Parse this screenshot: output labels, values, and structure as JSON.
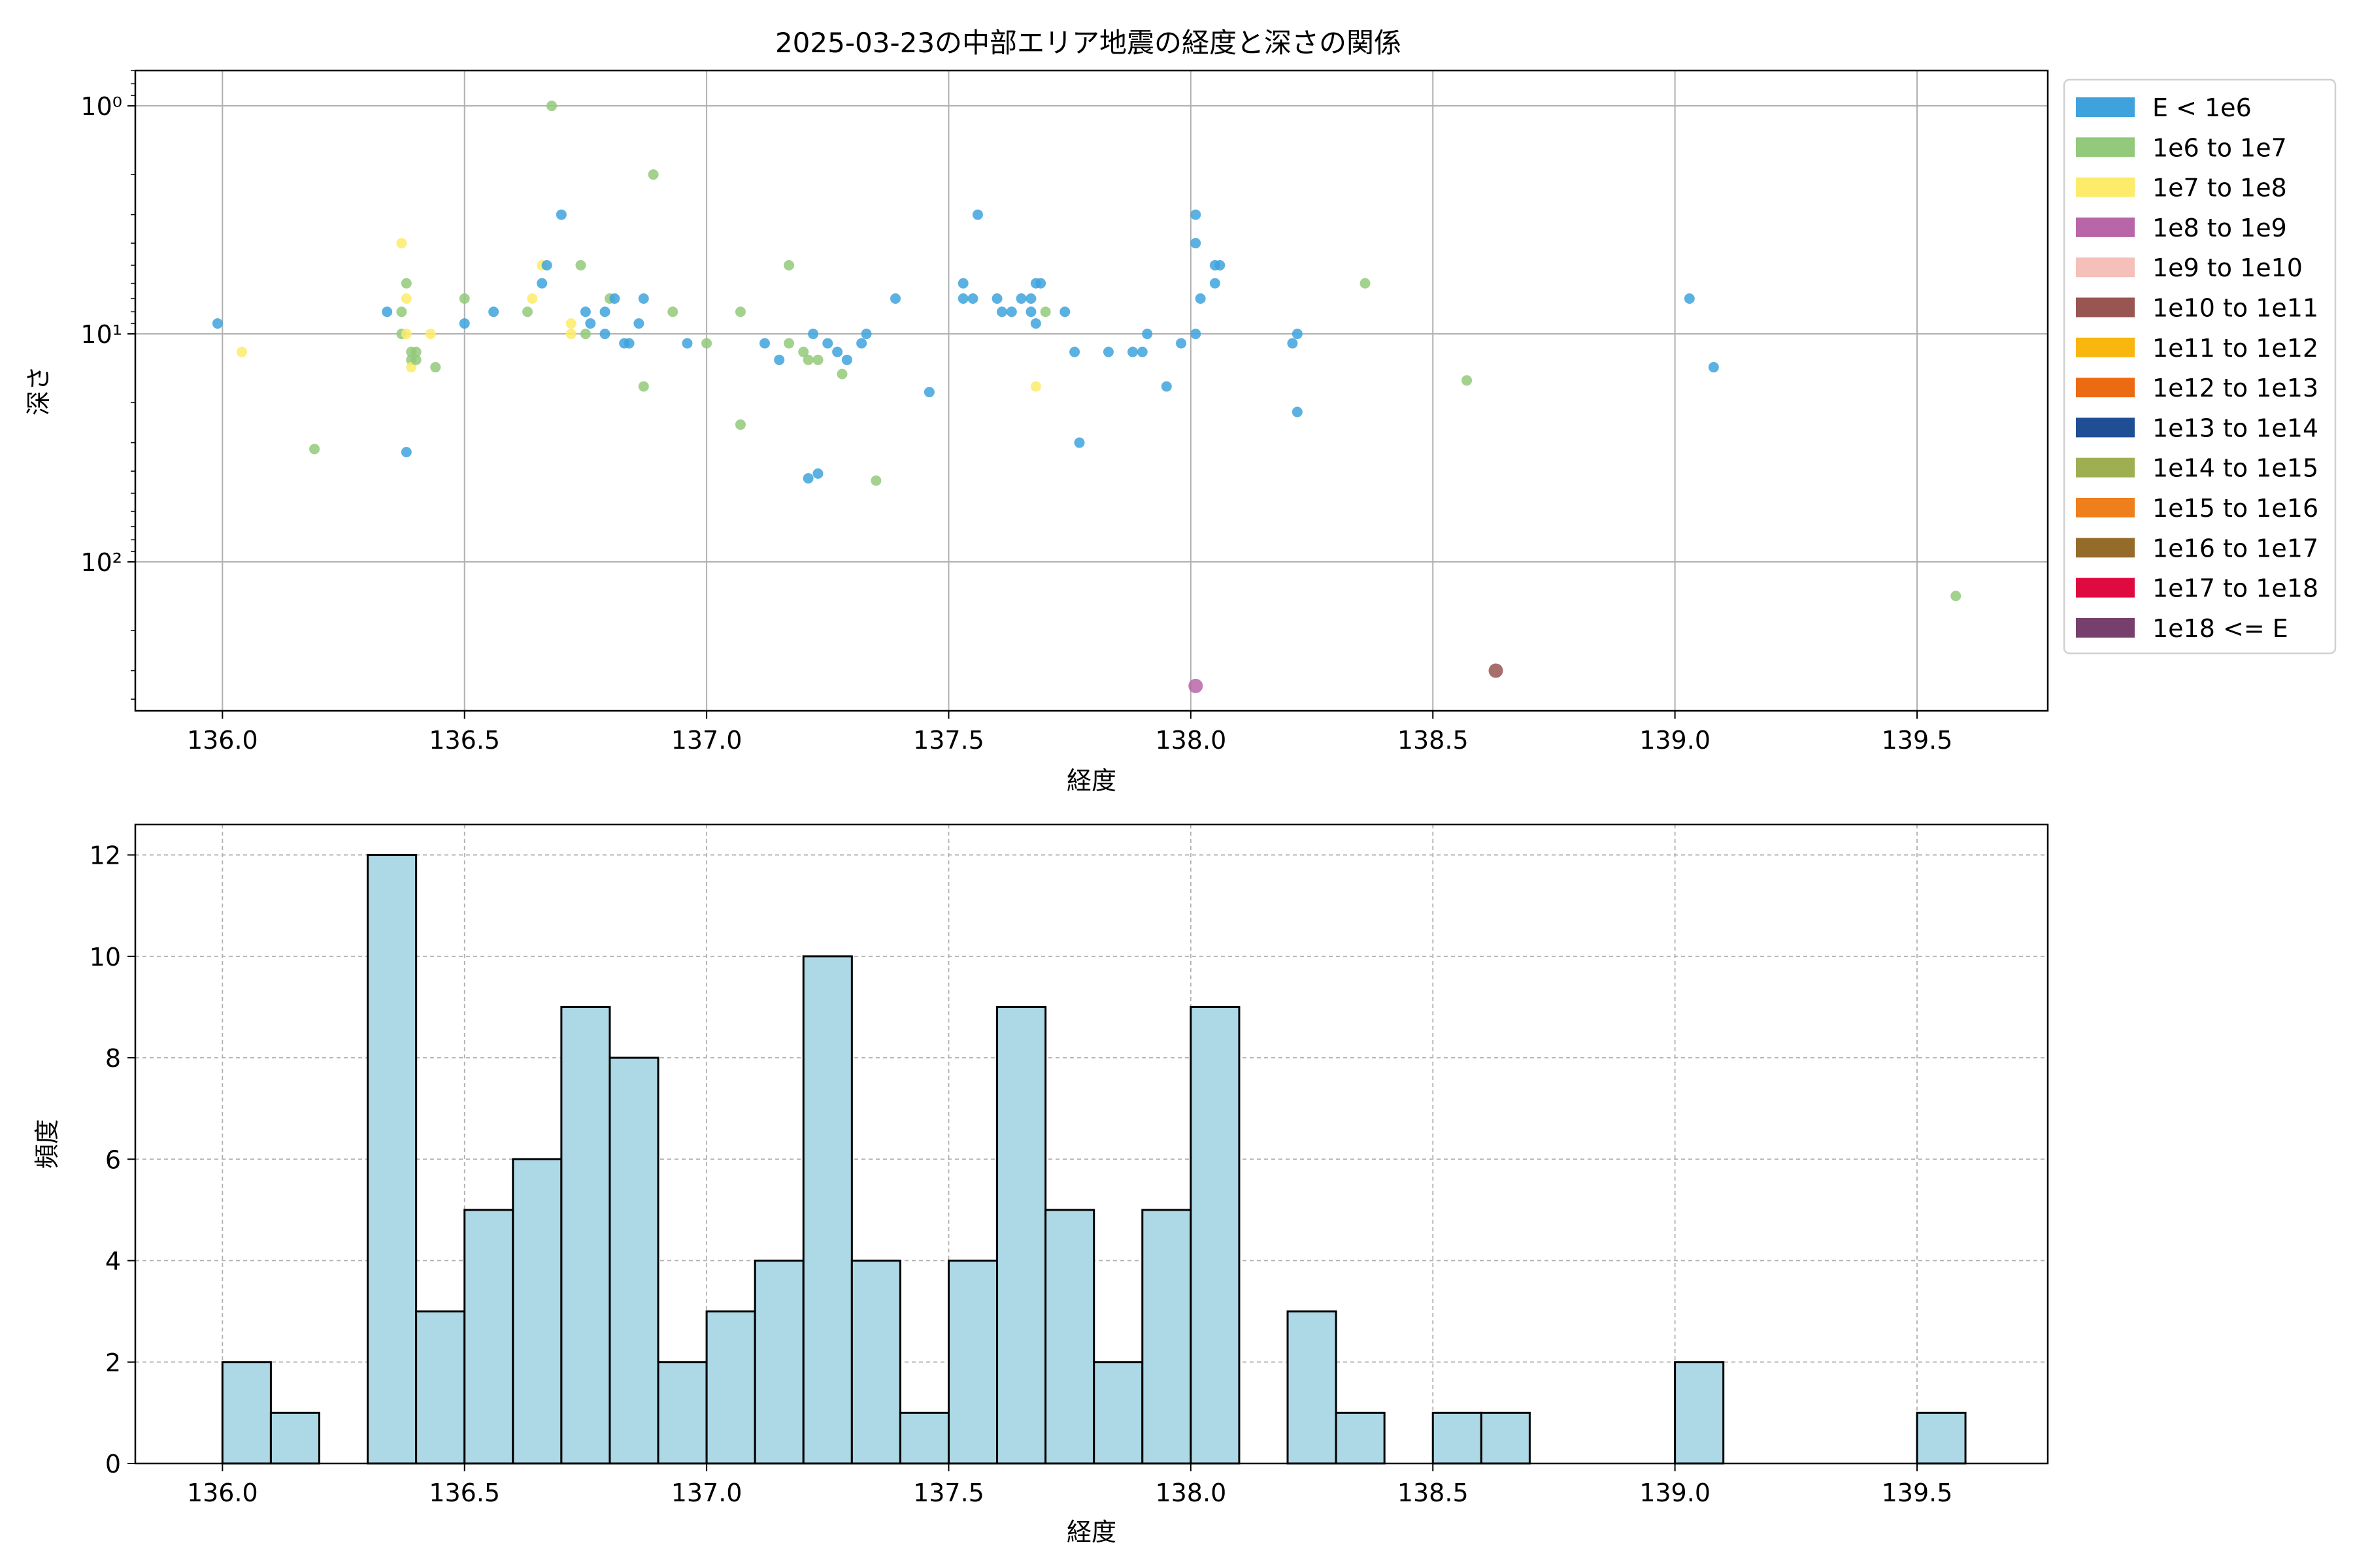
{
  "figure_title": "2025-03-23の中部エリア地震の経度と深さの関係",
  "chart_data": [
    {
      "type": "scatter",
      "title": "2025-03-23の中部エリア地震の経度と深さの関係",
      "xlabel": "経度",
      "ylabel": "深さ",
      "xlim": [
        135.82,
        139.77
      ],
      "xticks": [
        136.0,
        136.5,
        137.0,
        137.5,
        138.0,
        138.5,
        139.0,
        139.5
      ],
      "xtick_labels": [
        "136.0",
        "136.5",
        "137.0",
        "137.5",
        "138.0",
        "138.5",
        "139.0",
        "139.5"
      ],
      "yscale": "log",
      "yaxis_inverted": true,
      "ylim": [
        0.7,
        450
      ],
      "yticks": [
        1,
        10,
        100
      ],
      "ytick_labels": [
        "10⁰",
        "10¹",
        "10²"
      ],
      "grid": true,
      "legend_position": "outside-right",
      "legend": [
        {
          "label": "E < 1e6",
          "color": "#3ea3dc"
        },
        {
          "label": "1e6 to 1e7",
          "color": "#93c97a"
        },
        {
          "label": "1e7 to 1e8",
          "color": "#fdeb6a"
        },
        {
          "label": "1e8 to 1e9",
          "color": "#b866a7"
        },
        {
          "label": "1e9 to 1e10",
          "color": "#f4c0b9"
        },
        {
          "label": "1e10 to 1e11",
          "color": "#985551"
        },
        {
          "label": "1e11 to 1e12",
          "color": "#f8b60e"
        },
        {
          "label": "1e12 to 1e13",
          "color": "#ec6a12"
        },
        {
          "label": "1e13 to 1e14",
          "color": "#1f4e95"
        },
        {
          "label": "1e14 to 1e15",
          "color": "#9eaf52"
        },
        {
          "label": "1e15 to 1e16",
          "color": "#ee7f1c"
        },
        {
          "label": "1e16 to 1e17",
          "color": "#956b2a"
        },
        {
          "label": "1e17 to 1e18",
          "color": "#df0a3f"
        },
        {
          "label": "1e18 <= E",
          "color": "#763f6c"
        }
      ],
      "points": [
        {
          "x": 135.99,
          "y": 9,
          "c": 0
        },
        {
          "x": 136.04,
          "y": 12,
          "c": 2
        },
        {
          "x": 136.19,
          "y": 32,
          "c": 1
        },
        {
          "x": 136.34,
          "y": 8,
          "c": 0
        },
        {
          "x": 136.37,
          "y": 8,
          "c": 1
        },
        {
          "x": 136.37,
          "y": 10,
          "c": 1
        },
        {
          "x": 136.37,
          "y": 4,
          "c": 2
        },
        {
          "x": 136.38,
          "y": 7,
          "c": 2
        },
        {
          "x": 136.38,
          "y": 10,
          "c": 2
        },
        {
          "x": 136.38,
          "y": 33,
          "c": 0
        },
        {
          "x": 136.38,
          "y": 6,
          "c": 1
        },
        {
          "x": 136.39,
          "y": 13,
          "c": 1
        },
        {
          "x": 136.39,
          "y": 14,
          "c": 2
        },
        {
          "x": 136.39,
          "y": 12,
          "c": 1
        },
        {
          "x": 136.4,
          "y": 13,
          "c": 1
        },
        {
          "x": 136.4,
          "y": 12,
          "c": 1
        },
        {
          "x": 136.43,
          "y": 10,
          "c": 2
        },
        {
          "x": 136.44,
          "y": 14,
          "c": 1
        },
        {
          "x": 136.5,
          "y": 9,
          "c": 0
        },
        {
          "x": 136.5,
          "y": 7,
          "c": 1
        },
        {
          "x": 136.56,
          "y": 8,
          "c": 0
        },
        {
          "x": 136.63,
          "y": 8,
          "c": 1
        },
        {
          "x": 136.64,
          "y": 7,
          "c": 2
        },
        {
          "x": 136.66,
          "y": 5,
          "c": 2
        },
        {
          "x": 136.66,
          "y": 6,
          "c": 0
        },
        {
          "x": 136.67,
          "y": 5,
          "c": 0
        },
        {
          "x": 136.68,
          "y": 1,
          "c": 1
        },
        {
          "x": 136.7,
          "y": 3,
          "c": 0
        },
        {
          "x": 136.72,
          "y": 9,
          "c": 2
        },
        {
          "x": 136.72,
          "y": 10,
          "c": 2
        },
        {
          "x": 136.74,
          "y": 5,
          "c": 1
        },
        {
          "x": 136.75,
          "y": 8,
          "c": 0
        },
        {
          "x": 136.75,
          "y": 10,
          "c": 1
        },
        {
          "x": 136.76,
          "y": 9,
          "c": 0
        },
        {
          "x": 136.79,
          "y": 8,
          "c": 0
        },
        {
          "x": 136.79,
          "y": 10,
          "c": 0
        },
        {
          "x": 136.8,
          "y": 7,
          "c": 1
        },
        {
          "x": 136.81,
          "y": 7,
          "c": 0
        },
        {
          "x": 136.83,
          "y": 11,
          "c": 0
        },
        {
          "x": 136.84,
          "y": 11,
          "c": 0
        },
        {
          "x": 136.86,
          "y": 9,
          "c": 0
        },
        {
          "x": 136.87,
          "y": 7,
          "c": 0
        },
        {
          "x": 136.87,
          "y": 17,
          "c": 1
        },
        {
          "x": 136.89,
          "y": 2,
          "c": 1
        },
        {
          "x": 136.93,
          "y": 8,
          "c": 1
        },
        {
          "x": 136.96,
          "y": 11,
          "c": 0
        },
        {
          "x": 137.0,
          "y": 11,
          "c": 1
        },
        {
          "x": 137.07,
          "y": 8,
          "c": 1
        },
        {
          "x": 137.07,
          "y": 25,
          "c": 1
        },
        {
          "x": 137.12,
          "y": 11,
          "c": 0
        },
        {
          "x": 137.15,
          "y": 13,
          "c": 0
        },
        {
          "x": 137.17,
          "y": 11,
          "c": 1
        },
        {
          "x": 137.17,
          "y": 5,
          "c": 1
        },
        {
          "x": 137.2,
          "y": 12,
          "c": 1
        },
        {
          "x": 137.21,
          "y": 13,
          "c": 1
        },
        {
          "x": 137.21,
          "y": 43,
          "c": 0
        },
        {
          "x": 137.22,
          "y": 10,
          "c": 0
        },
        {
          "x": 137.23,
          "y": 13,
          "c": 1
        },
        {
          "x": 137.23,
          "y": 41,
          "c": 0
        },
        {
          "x": 137.25,
          "y": 11,
          "c": 0
        },
        {
          "x": 137.27,
          "y": 12,
          "c": 0
        },
        {
          "x": 137.28,
          "y": 15,
          "c": 1
        },
        {
          "x": 137.29,
          "y": 13,
          "c": 0
        },
        {
          "x": 137.32,
          "y": 11,
          "c": 0
        },
        {
          "x": 137.33,
          "y": 10,
          "c": 0
        },
        {
          "x": 137.35,
          "y": 44,
          "c": 1
        },
        {
          "x": 137.39,
          "y": 7,
          "c": 0
        },
        {
          "x": 137.46,
          "y": 18,
          "c": 0
        },
        {
          "x": 137.53,
          "y": 7,
          "c": 0
        },
        {
          "x": 137.53,
          "y": 6,
          "c": 0
        },
        {
          "x": 137.55,
          "y": 7,
          "c": 0
        },
        {
          "x": 137.56,
          "y": 3,
          "c": 0
        },
        {
          "x": 137.6,
          "y": 7,
          "c": 0
        },
        {
          "x": 137.61,
          "y": 8,
          "c": 0
        },
        {
          "x": 137.63,
          "y": 8,
          "c": 0
        },
        {
          "x": 137.65,
          "y": 7,
          "c": 0
        },
        {
          "x": 137.67,
          "y": 7,
          "c": 0
        },
        {
          "x": 137.67,
          "y": 8,
          "c": 0
        },
        {
          "x": 137.68,
          "y": 6,
          "c": 0
        },
        {
          "x": 137.68,
          "y": 9,
          "c": 0
        },
        {
          "x": 137.68,
          "y": 17,
          "c": 2
        },
        {
          "x": 137.69,
          "y": 6,
          "c": 0
        },
        {
          "x": 137.7,
          "y": 8,
          "c": 1
        },
        {
          "x": 137.74,
          "y": 8,
          "c": 0
        },
        {
          "x": 137.76,
          "y": 12,
          "c": 0
        },
        {
          "x": 137.77,
          "y": 30,
          "c": 0
        },
        {
          "x": 137.83,
          "y": 12,
          "c": 0
        },
        {
          "x": 137.88,
          "y": 12,
          "c": 0
        },
        {
          "x": 137.9,
          "y": 12,
          "c": 0
        },
        {
          "x": 137.91,
          "y": 10,
          "c": 0
        },
        {
          "x": 137.95,
          "y": 17,
          "c": 0
        },
        {
          "x": 137.98,
          "y": 11,
          "c": 0
        },
        {
          "x": 138.01,
          "y": 10,
          "c": 0
        },
        {
          "x": 138.01,
          "y": 3,
          "c": 0
        },
        {
          "x": 138.01,
          "y": 4,
          "c": 0
        },
        {
          "x": 138.02,
          "y": 7,
          "c": 0
        },
        {
          "x": 138.01,
          "y": 350,
          "c": 3
        },
        {
          "x": 138.05,
          "y": 5,
          "c": 0
        },
        {
          "x": 138.05,
          "y": 6,
          "c": 0
        },
        {
          "x": 138.06,
          "y": 5,
          "c": 0
        },
        {
          "x": 138.21,
          "y": 11,
          "c": 0
        },
        {
          "x": 138.22,
          "y": 10,
          "c": 0
        },
        {
          "x": 138.22,
          "y": 22,
          "c": 0
        },
        {
          "x": 138.36,
          "y": 6,
          "c": 1
        },
        {
          "x": 138.57,
          "y": 16,
          "c": 1
        },
        {
          "x": 138.63,
          "y": 300,
          "c": 5
        },
        {
          "x": 139.03,
          "y": 7,
          "c": 0
        },
        {
          "x": 139.08,
          "y": 14,
          "c": 0
        },
        {
          "x": 139.58,
          "y": 141,
          "c": 1
        }
      ]
    },
    {
      "type": "bar",
      "xlabel": "経度",
      "ylabel": "頻度",
      "xlim": [
        135.82,
        139.77
      ],
      "ylim": [
        0,
        12.6
      ],
      "xticks": [
        136.0,
        136.5,
        137.0,
        137.5,
        138.0,
        138.5,
        139.0,
        139.5
      ],
      "xtick_labels": [
        "136.0",
        "136.5",
        "137.0",
        "137.5",
        "138.0",
        "138.5",
        "139.0",
        "139.5"
      ],
      "yticks": [
        0,
        2,
        4,
        6,
        8,
        10,
        12
      ],
      "ytick_labels": [
        "0",
        "2",
        "4",
        "6",
        "8",
        "10",
        "12"
      ],
      "grid": true,
      "bar_color": "#add8e6",
      "bin_edges": [
        136.0,
        136.1,
        136.2,
        136.3,
        136.4,
        136.5,
        136.6,
        136.7,
        136.8,
        136.9,
        137.0,
        137.1,
        137.2,
        137.3,
        137.4,
        137.5,
        137.6,
        137.7,
        137.8,
        137.9,
        138.0,
        138.1,
        138.2,
        138.3,
        138.4,
        138.5,
        138.6,
        138.7,
        138.8,
        138.9,
        139.0,
        139.1,
        139.2,
        139.3,
        139.4,
        139.5,
        139.6
      ],
      "values": [
        2,
        1,
        0,
        12,
        3,
        5,
        6,
        9,
        8,
        2,
        3,
        4,
        10,
        4,
        1,
        4,
        9,
        5,
        2,
        5,
        9,
        0,
        3,
        1,
        0,
        1,
        1,
        0,
        0,
        0,
        2,
        0,
        0,
        0,
        0,
        1
      ]
    }
  ]
}
